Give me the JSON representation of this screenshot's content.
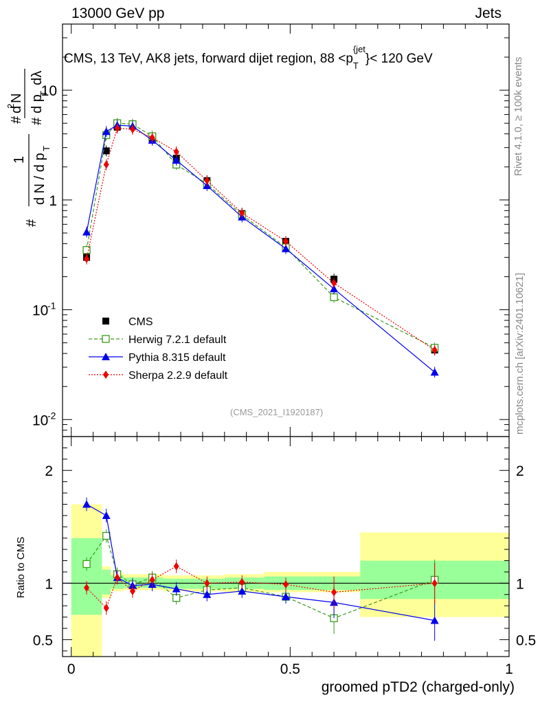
{
  "header": {
    "energy": "13000 GeV pp",
    "category": "Jets"
  },
  "side_labels": {
    "rivet": "Rivet 4.1.0, ≥ 100k events",
    "mcplots": "mcplots.cern.ch [arXiv:2401.10621]"
  },
  "chart_data": [
    {
      "type": "line",
      "title": "CMS, 13 TeV, AK8 jets, forward dijet region, 88 <p_T^{jet}< 120 GeV",
      "analysis_id": "(CMS_2021_I1920187)",
      "ylabel": "1/(dN/dp_T) d²N/(dp_T dλ)",
      "yscale": "log",
      "ylim": [
        0.007,
        40
      ],
      "xlim": [
        -0.02,
        1.0
      ],
      "y_ticks": [
        "10",
        "1",
        "10^-1",
        "10^-2"
      ],
      "x": [
        0.035,
        0.08,
        0.105,
        0.14,
        0.185,
        0.24,
        0.31,
        0.39,
        0.49,
        0.6,
        0.83
      ],
      "series": [
        {
          "name": "CMS",
          "color": "#000000",
          "marker": "filled-square",
          "values": [
            0.3,
            2.8,
            4.6,
            4.8,
            3.6,
            2.4,
            1.5,
            0.75,
            0.42,
            0.19,
            0.043
          ]
        },
        {
          "name": "Herwig 7.2.1 default",
          "color": "#3a9a1a",
          "marker": "open-square",
          "line": "dashed",
          "values": [
            0.35,
            3.9,
            5.0,
            4.9,
            3.8,
            2.1,
            1.4,
            0.73,
            0.37,
            0.13,
            0.045
          ]
        },
        {
          "name": "Pythia 8.315 default",
          "color": "#0000ee",
          "marker": "triangle",
          "line": "solid",
          "values": [
            0.51,
            4.2,
            4.8,
            4.7,
            3.5,
            2.3,
            1.35,
            0.7,
            0.36,
            0.155,
            0.027
          ]
        },
        {
          "name": "Sherpa 2.2.9 default",
          "color": "#ee0000",
          "marker": "diamond",
          "line": "dotted",
          "values": [
            0.29,
            2.1,
            4.5,
            4.4,
            3.7,
            2.75,
            1.5,
            0.76,
            0.42,
            0.175,
            0.043
          ]
        }
      ]
    },
    {
      "type": "line",
      "ylabel": "Ratio to CMS",
      "xlabel": "groomed pTD2 (charged-only)",
      "ylim": [
        0.35,
        2.3
      ],
      "xlim": [
        -0.02,
        1.0
      ],
      "y_ticks": [
        "2",
        "1",
        "0.5"
      ],
      "x_ticks": [
        "0",
        "0.5",
        "1"
      ],
      "x": [
        0.035,
        0.08,
        0.105,
        0.14,
        0.185,
        0.24,
        0.31,
        0.39,
        0.49,
        0.6,
        0.83
      ],
      "band_edges": [
        0.0,
        0.07,
        0.09,
        0.12,
        0.16,
        0.21,
        0.27,
        0.35,
        0.44,
        0.55,
        0.66,
        1.0
      ],
      "band_stat": [
        [
          0.72,
          1.4
        ],
        [
          0.9,
          1.12
        ],
        [
          0.95,
          1.07
        ],
        [
          0.96,
          1.05
        ],
        [
          0.96,
          1.05
        ],
        [
          0.95,
          1.04
        ],
        [
          0.95,
          1.04
        ],
        [
          0.95,
          1.05
        ],
        [
          0.94,
          1.06
        ],
        [
          0.94,
          1.06
        ],
        [
          0.86,
          1.2
        ]
      ],
      "band_total": [
        [
          0.0,
          1.7
        ],
        [
          0.87,
          1.15
        ],
        [
          0.93,
          1.09
        ],
        [
          0.94,
          1.08
        ],
        [
          0.94,
          1.08
        ],
        [
          0.93,
          1.07
        ],
        [
          0.93,
          1.07
        ],
        [
          0.92,
          1.08
        ],
        [
          0.92,
          1.1
        ],
        [
          0.92,
          1.1
        ],
        [
          0.7,
          1.45
        ]
      ],
      "series": [
        {
          "name": "Herwig 7.2.1 default",
          "values": [
            1.17,
            1.42,
            1.08,
            0.99,
            1.05,
            0.87,
            0.94,
            0.96,
            0.88,
            0.69,
            1.03
          ]
        },
        {
          "name": "Pythia 8.315 default",
          "values": [
            1.7,
            1.6,
            1.05,
            0.98,
            0.99,
            0.95,
            0.9,
            0.93,
            0.88,
            0.83,
            0.67
          ]
        },
        {
          "name": "Sherpa 2.2.9 default",
          "values": [
            0.96,
            0.78,
            1.05,
            0.93,
            1.03,
            1.15,
            1.0,
            1.01,
            0.99,
            0.92,
            1.0
          ]
        }
      ]
    }
  ]
}
